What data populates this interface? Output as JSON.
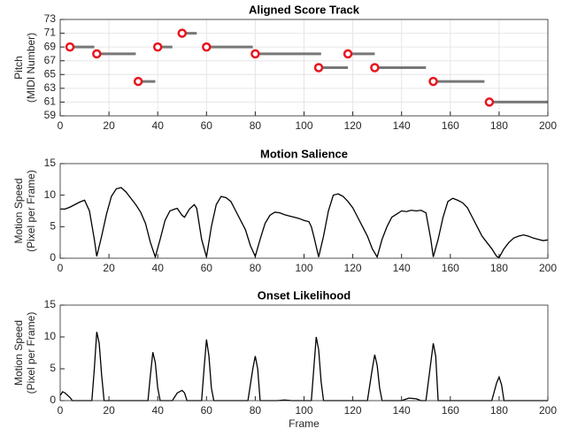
{
  "chart_data": [
    {
      "type": "score",
      "title": "Aligned Score Track",
      "ylabel": [
        "Pitch",
        "(MIDI Number)"
      ],
      "x": [
        4,
        15,
        32,
        40,
        50,
        60,
        80,
        106,
        118,
        129,
        153,
        176
      ],
      "x_end": [
        14,
        31,
        39,
        46,
        56,
        79,
        107,
        118,
        129,
        150,
        174,
        200
      ],
      "values": [
        69,
        68,
        64,
        69,
        71,
        69,
        68,
        66,
        68,
        66,
        64,
        61
      ],
      "marker_color": "#e8141e",
      "color": "#777777",
      "xlim": [
        0,
        200
      ],
      "xticks": [
        0,
        20,
        40,
        60,
        80,
        100,
        120,
        140,
        160,
        180,
        200
      ],
      "ylim": [
        59,
        73
      ],
      "yticks": [
        59,
        61,
        63,
        65,
        67,
        69,
        71,
        73
      ],
      "grid": true
    },
    {
      "type": "line",
      "title": "Motion Salience",
      "ylabel": [
        "Motion Speed",
        "(Pixel per Frame)"
      ],
      "color": "#000000",
      "x": [
        0,
        2,
        4,
        6,
        8,
        10,
        12,
        14,
        15,
        17,
        19,
        21,
        23,
        25,
        27,
        29,
        31,
        33,
        35,
        37,
        39,
        41,
        43,
        45,
        47,
        48,
        50,
        51,
        53,
        55,
        56,
        58,
        60,
        62,
        64,
        66,
        68,
        70,
        72,
        74,
        76,
        78,
        80,
        82,
        84,
        86,
        88,
        90,
        92,
        94,
        96,
        98,
        100,
        102,
        103,
        104,
        106,
        108,
        110,
        112,
        114,
        116,
        118,
        120,
        122,
        124,
        126,
        128,
        130,
        132,
        134,
        136,
        138,
        140,
        142,
        144,
        146,
        148,
        150,
        152,
        153,
        155,
        157,
        159,
        161,
        163,
        165,
        167,
        169,
        171,
        173,
        175,
        177,
        179,
        180,
        182,
        184,
        186,
        188,
        190,
        192,
        194,
        196,
        198,
        200
      ],
      "values": [
        7.8,
        7.8,
        8.1,
        8.5,
        8.9,
        9.2,
        7.5,
        3,
        0.3,
        3.5,
        7,
        9.8,
        11,
        11.2,
        10.5,
        9.5,
        8.5,
        7.3,
        5.5,
        2.5,
        0.2,
        3,
        6,
        7.5,
        7.8,
        7.9,
        6.8,
        6.5,
        7.8,
        8.5,
        7.9,
        3,
        0.2,
        5,
        8.5,
        9.8,
        9.6,
        9,
        7.5,
        6,
        4.5,
        2,
        0.3,
        3,
        5.5,
        6.8,
        7.3,
        7.2,
        6.9,
        6.7,
        6.5,
        6.3,
        6,
        5.8,
        5,
        3.5,
        0.2,
        3.5,
        7.5,
        10,
        10.2,
        9.8,
        9,
        8,
        6.5,
        5,
        3.5,
        1.5,
        0.2,
        3,
        5,
        6.5,
        7,
        7.5,
        7.4,
        7.6,
        7.5,
        7.6,
        7.2,
        3,
        0.2,
        3,
        6.5,
        9,
        9.5,
        9.2,
        8.8,
        8,
        6.5,
        5,
        3.5,
        2.5,
        1.5,
        0.3,
        0.1,
        1.5,
        2.5,
        3.2,
        3.5,
        3.7,
        3.5,
        3.2,
        3,
        2.8,
        2.9
      ],
      "xlim": [
        0,
        200
      ],
      "xticks": [
        0,
        20,
        40,
        60,
        80,
        100,
        120,
        140,
        160,
        180,
        200
      ],
      "ylim": [
        0,
        15
      ],
      "yticks": [
        0,
        5,
        10,
        15
      ],
      "grid": false
    },
    {
      "type": "line",
      "title": "Onset Likelihood",
      "ylabel": [
        "Motion Speed",
        "(Pixel per Frame)"
      ],
      "xlabel": "Frame",
      "color": "#000000",
      "x": [
        0,
        1,
        2,
        4,
        5,
        13,
        14,
        15,
        16,
        17,
        18,
        36,
        37,
        38,
        39,
        40,
        41,
        46,
        48,
        50,
        51,
        52,
        58,
        59,
        60,
        61,
        62,
        63,
        77,
        79,
        80,
        81,
        82,
        89,
        92,
        95,
        103,
        104,
        105,
        106,
        107,
        108,
        126,
        128,
        129,
        130,
        131,
        132,
        140,
        143,
        146,
        148,
        150,
        152,
        153,
        154,
        155,
        177,
        179,
        180,
        181,
        182,
        200
      ],
      "values": [
        0.8,
        1.4,
        1.2,
        0.5,
        0,
        0,
        5,
        10.8,
        9,
        4,
        0,
        0,
        4,
        7.6,
        6,
        2,
        0,
        0,
        1.2,
        1.6,
        1.2,
        0,
        0,
        5,
        9.6,
        7,
        2,
        0,
        0,
        5,
        7,
        5,
        0,
        0,
        0.1,
        0,
        0,
        5,
        10,
        8,
        3,
        0,
        0,
        5,
        7.2,
        5.5,
        2,
        0,
        0,
        0.4,
        0.3,
        0,
        0,
        6,
        9,
        7,
        0,
        0,
        2.8,
        3.7,
        2.5,
        0,
        0
      ],
      "xlim": [
        0,
        200
      ],
      "xticks": [
        0,
        20,
        40,
        60,
        80,
        100,
        120,
        140,
        160,
        180,
        200
      ],
      "ylim": [
        0,
        15
      ],
      "yticks": [
        0,
        5,
        10,
        15
      ],
      "grid": false
    }
  ]
}
